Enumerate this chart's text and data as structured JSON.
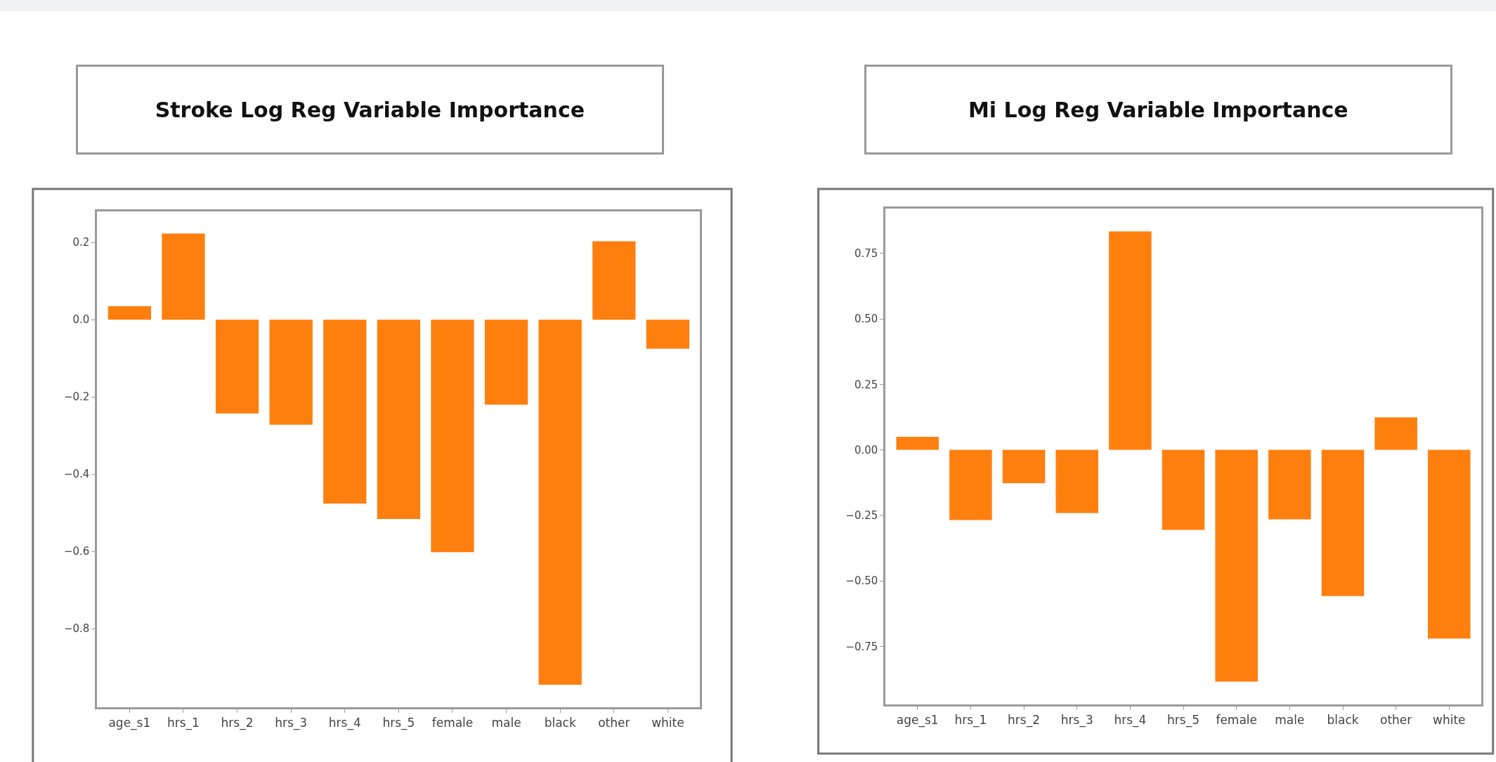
{
  "chart_data": [
    {
      "type": "bar",
      "title": "Stroke Log Reg Variable Importance",
      "categories": [
        "age_s1",
        "hrs_1",
        "hrs_2",
        "hrs_3",
        "hrs_4",
        "hrs_5",
        "female",
        "male",
        "black",
        "other",
        "white"
      ],
      "series": [
        {
          "color": "#ff7f0e",
          "values": [
            0.035,
            0.223,
            -0.243,
            -0.272,
            -0.476,
            -0.516,
            -0.602,
            -0.22,
            -0.945,
            0.203,
            -0.075
          ]
        }
      ],
      "ylim": [
        -1.003,
        0.281
      ],
      "yticks": [
        -0.8,
        -0.6,
        -0.4,
        -0.2,
        {
          "value": 0.0,
          "label": "0.0"
        },
        0.2
      ]
    },
    {
      "type": "bar",
      "title": "Mi Log Reg Variable Importance",
      "categories": [
        "age_s1",
        "hrs_1",
        "hrs_2",
        "hrs_3",
        "hrs_4",
        "hrs_5",
        "female",
        "male",
        "black",
        "other",
        "white"
      ],
      "series": [
        {
          "color": "#ff7f0e",
          "values": [
            0.05,
            -0.268,
            -0.127,
            -0.241,
            0.834,
            -0.305,
            -0.884,
            -0.265,
            -0.558,
            0.124,
            -0.72
          ]
        }
      ],
      "ylim": [
        -0.97,
        0.92
      ],
      "yticks": [
        {
          "value": -0.75,
          "label": "−0.75"
        },
        {
          "value": -0.5,
          "label": "−0.50"
        },
        {
          "value": -0.25,
          "label": "−0.25"
        },
        {
          "value": 0.0,
          "label": "0.00"
        },
        {
          "value": 0.25,
          "label": "0.25"
        },
        {
          "value": 0.5,
          "label": "0.50"
        },
        {
          "value": 0.75,
          "label": "0.75"
        }
      ]
    }
  ]
}
